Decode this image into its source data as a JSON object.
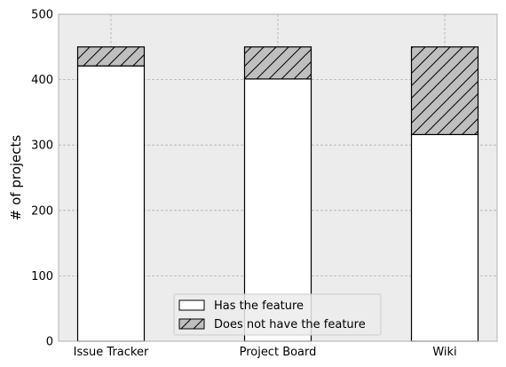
{
  "chart_data": {
    "type": "bar",
    "stacked": true,
    "categories": [
      "Issue Tracker",
      "Project Board",
      "Wiki"
    ],
    "series": [
      {
        "name": "Has the feature",
        "values": [
          421,
          401,
          316
        ],
        "fill": "#ffffff",
        "pattern": "none"
      },
      {
        "name": "Does not have the feature",
        "values": [
          29,
          49,
          134
        ],
        "fill": "#bfbfbf",
        "pattern": "diagonal-hatch"
      }
    ],
    "title": "",
    "xlabel": "",
    "ylabel": "# of projects",
    "ylim": [
      0,
      500
    ],
    "yticks": [
      0,
      100,
      200,
      300,
      400,
      500
    ],
    "grid": true,
    "legend_position": "bottom-center",
    "colors": {
      "plot_background": "#ececec",
      "grid": "#b0b0b0",
      "edge": "#000000"
    }
  }
}
